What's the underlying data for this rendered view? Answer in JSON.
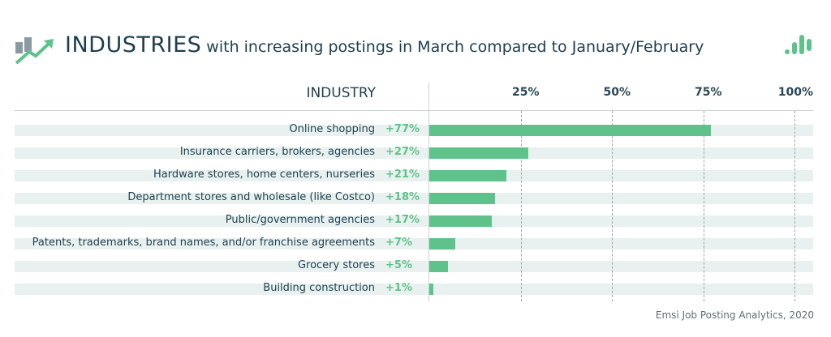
{
  "header": {
    "title_bold": "INDUSTRIES",
    "title_rest": " with increasing postings in March compared to January/February",
    "column_label": "INDUSTRY"
  },
  "source": "Emsi Job Posting Analytics, 2020",
  "colors": {
    "bar": "#5fc28a",
    "row_bg": "#e8f1ef",
    "title": "#1d3f4f"
  },
  "chart_data": {
    "type": "bar",
    "orientation": "horizontal",
    "title": "INDUSTRIES with increasing postings in March compared to January/February",
    "ylabel": "INDUSTRY",
    "xlim": [
      0,
      100
    ],
    "ticks": [
      "25%",
      "50%",
      "75%",
      "100%"
    ],
    "tick_values": [
      25,
      50,
      75,
      100
    ],
    "categories": [
      "Online shopping",
      "Insurance carriers, brokers, agencies",
      "Hardware stores, home centers, nurseries",
      "Department stores and wholesale (like Costco)",
      "Public/government agencies",
      "Patents, trademarks, brand names, and/or franchise agreements",
      "Grocery stores",
      "Building construction"
    ],
    "values": [
      77,
      27,
      21,
      18,
      17,
      7,
      5,
      1
    ],
    "labels": [
      "+77%",
      "+27%",
      "+21%",
      "+18%",
      "+17%",
      "+7%",
      "+5%",
      "+1%"
    ]
  }
}
